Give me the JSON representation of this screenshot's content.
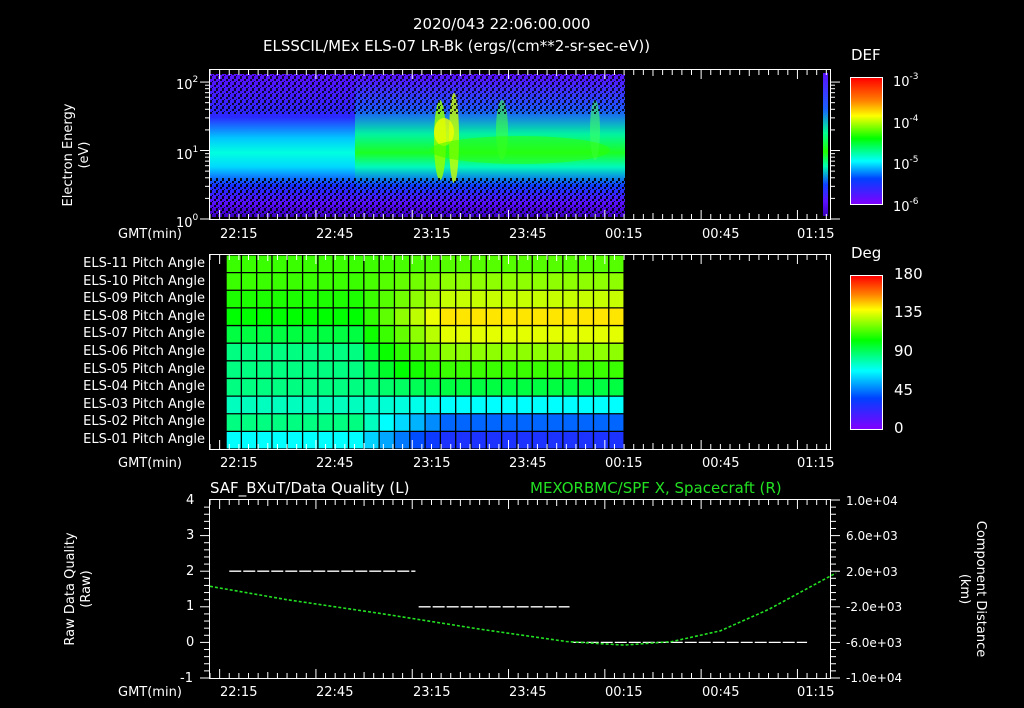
{
  "header": {
    "timestamp": "2020/043 22:06:00.000",
    "subtitle": "ELSSCIL/MEx ELS-07 LR-Bk  (ergs/(cm**2-sr-sec-eV))"
  },
  "time_axis": {
    "label": "GMT(min)",
    "ticks": [
      "22:15",
      "22:45",
      "23:15",
      "23:45",
      "00:15",
      "00:45",
      "01:15"
    ]
  },
  "panel1": {
    "ylabel_line1": "Electron Energy",
    "ylabel_line2": "(eV)",
    "yticks": [
      {
        "base": "10",
        "exp": "2"
      },
      {
        "base": "10",
        "exp": "1"
      },
      {
        "base": "10",
        "exp": "0"
      }
    ],
    "colorbar": {
      "title": "DEF",
      "ticks": [
        {
          "base": "10",
          "exp": "-3"
        },
        {
          "base": "10",
          "exp": "-4"
        },
        {
          "base": "10",
          "exp": "-5"
        },
        {
          "base": "10",
          "exp": "-6"
        }
      ]
    }
  },
  "panel2": {
    "rows": [
      "ELS-11 Pitch Angle",
      "ELS-10 Pitch Angle",
      "ELS-09 Pitch Angle",
      "ELS-08 Pitch Angle",
      "ELS-07 Pitch Angle",
      "ELS-06 Pitch Angle",
      "ELS-05 Pitch Angle",
      "ELS-04 Pitch Angle",
      "ELS-03 Pitch Angle",
      "ELS-02 Pitch Angle",
      "ELS-01 Pitch Angle"
    ],
    "colorbar": {
      "title": "Deg",
      "ticks": [
        "180",
        "135",
        "90",
        "45",
        "0"
      ]
    }
  },
  "panel3": {
    "left_title": "SAF_BXuT/Data Quality (L)",
    "right_title": "MEXORBMC/SPF X, Spacecraft (R)",
    "right_title_color": "#22e022",
    "ylabel_left_line1": "Raw Data Quality",
    "ylabel_left_line2": "(Raw)",
    "yticks_left": [
      "4",
      "3",
      "2",
      "1",
      "0",
      "-1"
    ],
    "ylabel_right_line1": "Component Distance",
    "ylabel_right_line2": "(km)",
    "yticks_right": [
      "1.0e+04",
      "6.0e+03",
      "2.0e+03",
      "-2.0e+03",
      "-6.0e+03",
      "-1.0e+04"
    ]
  },
  "chart_data": [
    {
      "type": "heatmap",
      "title": "ELSSCIL/MEx ELS-07 LR-Bk (ergs/(cm**2-sr-sec-eV))",
      "xlabel": "GMT(min)",
      "ylabel": "Electron Energy (eV)",
      "yscale": "log",
      "ylim": [
        1,
        150
      ],
      "x_tick_labels": [
        "22:15",
        "22:45",
        "23:15",
        "23:45",
        "00:15",
        "00:45",
        "01:15"
      ],
      "xrange": [
        "22:06",
        "01:21"
      ],
      "data_coverage": [
        "22:06",
        "00:15"
      ],
      "colorbar": {
        "label": "DEF",
        "scale": "log",
        "range": [
          1e-06,
          0.001
        ]
      },
      "features": [
        {
          "description": "Background band centered ~5-15 eV, DEF ~1e-5 (cyan)",
          "time": "22:06-23:10"
        },
        {
          "description": "Enhanced flux spikes reaching ~60 eV, DEF ~2e-4 (yellow)",
          "time": "23:12-23:22"
        },
        {
          "description": "Elevated flux band ~6-30 eV, DEF ~1e-4 (green)",
          "time": "23:20-00:10"
        },
        {
          "description": "Spike near ~40 eV",
          "time": "00:07"
        }
      ]
    },
    {
      "type": "heatmap",
      "title": "ELS Pitch Angle",
      "xlabel": "GMT(min)",
      "categories": [
        "ELS-01",
        "ELS-02",
        "ELS-03",
        "ELS-04",
        "ELS-05",
        "ELS-06",
        "ELS-07",
        "ELS-08",
        "ELS-09",
        "ELS-10",
        "ELS-11"
      ],
      "colorbar": {
        "label": "Deg",
        "range": [
          0,
          180
        ]
      },
      "data_coverage": [
        "22:11",
        "00:15"
      ],
      "values_approx_deg": {
        "early_22:15-23:00": {
          "ELS-01": 70,
          "ELS-02": 80,
          "ELS-03": 75,
          "ELS-04": 80,
          "ELS-05": 80,
          "ELS-06": 80,
          "ELS-07": 85,
          "ELS-08": 90,
          "ELS-09": 95,
          "ELS-10": 100,
          "ELS-11": 100
        },
        "late_23:30-00:15": {
          "ELS-01": 35,
          "ELS-02": 50,
          "ELS-03": 70,
          "ELS-04": 85,
          "ELS-05": 100,
          "ELS-06": 115,
          "ELS-07": 130,
          "ELS-08": 140,
          "ELS-09": 125,
          "ELS-10": 115,
          "ELS-11": 105
        }
      }
    },
    {
      "type": "line",
      "title": "SAF_BXuT/Data Quality (L) ; MEXORBMC/SPF X, Spacecraft (R)",
      "xlabel": "GMT(min)",
      "x_tick_labels": [
        "22:15",
        "22:45",
        "23:15",
        "23:45",
        "00:15",
        "00:45",
        "01:15"
      ],
      "series": [
        {
          "name": "Raw Data Quality (L)",
          "axis": "left",
          "color": "#ffffff",
          "style": "dashed",
          "x": [
            "22:12",
            "23:10",
            "23:11",
            "23:58",
            "23:59",
            "01:12"
          ],
          "values": [
            2,
            2,
            1,
            1,
            0,
            0
          ]
        },
        {
          "name": "SPF X Spacecraft (R)",
          "axis": "right",
          "color": "#22e022",
          "style": "dotted",
          "x": [
            "22:06",
            "22:30",
            "23:00",
            "23:30",
            "23:57",
            "00:15",
            "00:30",
            "00:45",
            "01:00",
            "01:21"
          ],
          "values": [
            300,
            -1200,
            -2800,
            -4500,
            -5900,
            -6300,
            -5900,
            -4700,
            -2300,
            1800
          ]
        }
      ],
      "ylim_left": [
        -1,
        4
      ],
      "ylim_right": [
        -10000,
        10000
      ]
    }
  ]
}
